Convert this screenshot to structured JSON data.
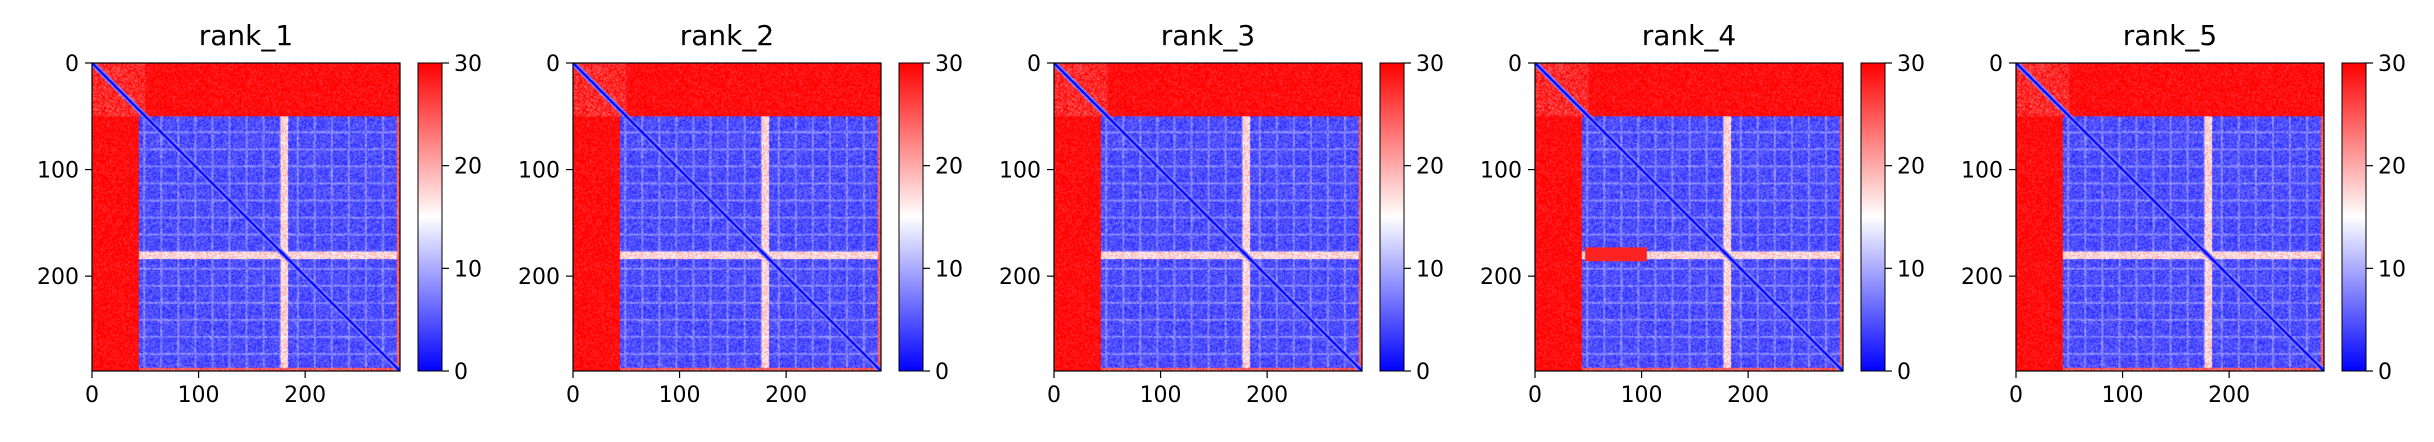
{
  "chart_data": [
    {
      "type": "heatmap",
      "title": "rank_1",
      "xlabel": "",
      "ylabel": "",
      "xlim": [
        0,
        289
      ],
      "ylim": [
        289,
        0
      ],
      "xticks": [
        "0",
        "100",
        "200"
      ],
      "yticks": [
        "0",
        "100",
        "200"
      ],
      "colorbar": {
        "ticks": [
          "0",
          "10",
          "20",
          "30"
        ],
        "range": [
          0,
          30
        ],
        "colormap": "bwr"
      },
      "matrix_size": 289,
      "low_block_start": 44,
      "low_block_top": 50,
      "white_bands": [
        180
      ],
      "red_edge_bottom": 285
    },
    {
      "type": "heatmap",
      "title": "rank_2",
      "xlabel": "",
      "ylabel": "",
      "xlim": [
        0,
        289
      ],
      "ylim": [
        289,
        0
      ],
      "xticks": [
        "0",
        "100",
        "200"
      ],
      "yticks": [
        "0",
        "100",
        "200"
      ],
      "colorbar": {
        "ticks": [
          "0",
          "10",
          "20",
          "30"
        ],
        "range": [
          0,
          30
        ],
        "colormap": "bwr"
      },
      "matrix_size": 289,
      "low_block_start": 44,
      "low_block_top": 50,
      "white_bands": [
        180
      ],
      "red_edge_bottom": 285
    },
    {
      "type": "heatmap",
      "title": "rank_3",
      "xlabel": "",
      "ylabel": "",
      "xlim": [
        0,
        289
      ],
      "ylim": [
        289,
        0
      ],
      "xticks": [
        "0",
        "100",
        "200"
      ],
      "yticks": [
        "0",
        "100",
        "200"
      ],
      "colorbar": {
        "ticks": [
          "0",
          "10",
          "20",
          "30"
        ],
        "range": [
          0,
          30
        ],
        "colormap": "bwr"
      },
      "matrix_size": 289,
      "low_block_start": 44,
      "low_block_top": 50,
      "white_bands": [
        180
      ],
      "red_edge_bottom": 285
    },
    {
      "type": "heatmap",
      "title": "rank_4",
      "xlabel": "",
      "ylabel": "",
      "xlim": [
        0,
        289
      ],
      "ylim": [
        289,
        0
      ],
      "xticks": [
        "0",
        "100",
        "200"
      ],
      "yticks": [
        "0",
        "100",
        "200"
      ],
      "colorbar": {
        "ticks": [
          "0",
          "10",
          "20",
          "30"
        ],
        "range": [
          0,
          30
        ],
        "colormap": "bwr"
      },
      "matrix_size": 289,
      "low_block_start": 44,
      "low_block_top": 50,
      "white_bands": [
        180
      ],
      "red_edge_bottom": 285
    },
    {
      "type": "heatmap",
      "title": "rank_5",
      "xlabel": "",
      "ylabel": "",
      "xlim": [
        0,
        289
      ],
      "ylim": [
        289,
        0
      ],
      "xticks": [
        "0",
        "100",
        "200"
      ],
      "yticks": [
        "0",
        "100",
        "200"
      ],
      "colorbar": {
        "ticks": [
          "0",
          "10",
          "20",
          "30"
        ],
        "range": [
          0,
          30
        ],
        "colormap": "bwr"
      },
      "matrix_size": 289,
      "low_block_start": 44,
      "low_block_top": 50,
      "white_bands": [
        180
      ],
      "red_edge_bottom": 285
    }
  ],
  "colors": {
    "high": "#ff0000",
    "mid": "#ffffff",
    "low": "#0000ff"
  }
}
